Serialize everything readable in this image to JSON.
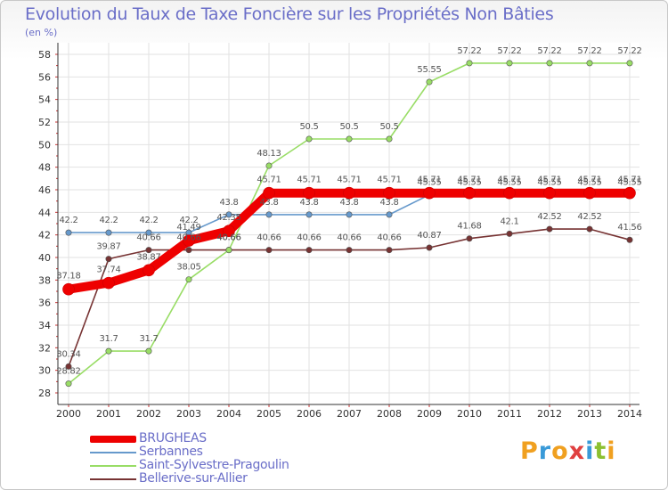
{
  "title": "Evolution du Taux de Taxe Foncière sur les Propriétés Non Bâties",
  "unit": "(en %)",
  "brand": {
    "letters": [
      {
        "ch": "P",
        "color": "#f0a020"
      },
      {
        "ch": "r",
        "color": "#3a9ad8"
      },
      {
        "ch": "o",
        "color": "#f0a020"
      },
      {
        "ch": "x",
        "color": "#e04040"
      },
      {
        "ch": "i",
        "color": "#3a9ad8"
      },
      {
        "ch": "t",
        "color": "#8cc030"
      },
      {
        "ch": "i",
        "color": "#f0a020"
      }
    ]
  },
  "chart_data": {
    "type": "line",
    "title": "Evolution du Taux de Taxe Foncière sur les Propriétés Non Bâties",
    "ylabel": "(en %)",
    "xlabel": "",
    "x": [
      "2000",
      "2001",
      "2002",
      "2003",
      "2004",
      "2005",
      "2006",
      "2007",
      "2008",
      "2009",
      "2010",
      "2011",
      "2012",
      "2013",
      "2014"
    ],
    "ylim": [
      28,
      58
    ],
    "yticks": [
      28,
      30,
      32,
      34,
      36,
      38,
      40,
      42,
      44,
      46,
      48,
      50,
      52,
      54,
      56,
      58
    ],
    "grid": true,
    "legend": "bottom-left",
    "series": [
      {
        "name": "BRUGHEAS",
        "color": "#ee0000",
        "values": [
          37.18,
          37.74,
          38.87,
          41.49,
          42.35,
          45.71,
          45.71,
          45.71,
          45.71,
          45.71,
          45.71,
          45.71,
          45.71,
          45.71,
          45.71
        ],
        "labels": [
          "37.18",
          "37.74",
          "38.87",
          "41.49",
          "42.35",
          "45.71",
          "45.71",
          "45.71",
          "45.71",
          "45.71",
          "45.71",
          "45.71",
          "45.71",
          "45.71",
          "45.71"
        ]
      },
      {
        "name": "Serbannes",
        "color": "#6699cc",
        "values": [
          42.2,
          42.2,
          42.2,
          42.2,
          43.8,
          43.8,
          43.8,
          43.8,
          43.8,
          45.55,
          45.55,
          45.55,
          45.55,
          45.55,
          45.55
        ],
        "labels": [
          "42.2",
          "42.2",
          "42.2",
          "42.2",
          "43.8",
          "43.8",
          "43.8",
          "43.8",
          "43.8",
          "45.55",
          "45.55",
          "45.55",
          "45.55",
          "45.55",
          "45.55"
        ]
      },
      {
        "name": "Saint-Sylvestre-Pragoulin",
        "color": "#99dd66",
        "values": [
          28.82,
          31.7,
          31.7,
          38.05,
          40.66,
          48.13,
          50.5,
          50.5,
          50.5,
          55.55,
          57.22,
          57.22,
          57.22,
          57.22,
          57.22
        ],
        "labels": [
          "28.82",
          "31.7",
          "31.7",
          "38.05",
          "40.66",
          "48.13",
          "50.5",
          "50.5",
          "50.5",
          "55.55",
          "57.22",
          "57.22",
          "57.22",
          "57.22",
          "57.22"
        ]
      },
      {
        "name": "Bellerive-sur-Allier",
        "color": "#773333",
        "values": [
          30.34,
          39.87,
          40.66,
          40.66,
          40.66,
          40.66,
          40.66,
          40.66,
          40.66,
          40.87,
          41.68,
          42.1,
          42.52,
          42.52,
          41.56
        ],
        "labels": [
          "30.34",
          "39.87",
          "40.66",
          "40.66",
          "40.66",
          "40.66",
          "40.66",
          "40.66",
          "40.66",
          "40.87",
          "41.68",
          "42.1",
          "42.52",
          "42.52",
          "41.56"
        ]
      }
    ]
  }
}
